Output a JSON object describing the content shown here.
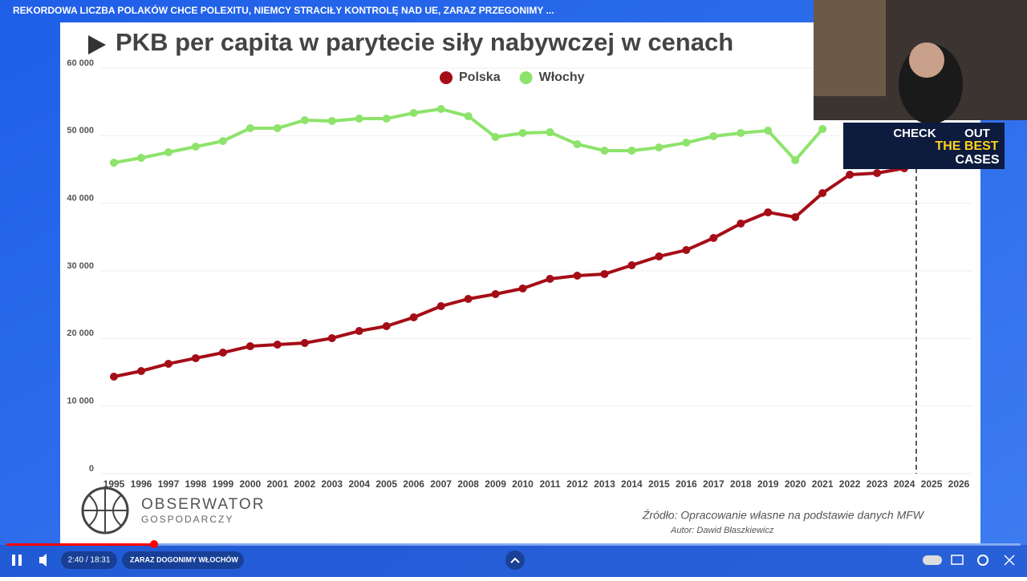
{
  "video": {
    "title": "REKORDOWA LICZBA POLAKÓW CHCE POLEXITU, NIEMCY STRACIŁY KONTROLĘ NAD UE, ZARAZ PRZEGONIMY ...",
    "time": "2:40 / 18:31",
    "chapter": "ZARAZ DOGONIMY WŁOCHÓW",
    "ad": [
      "CHECK",
      "OUT",
      "THE BEST",
      "CASES"
    ]
  },
  "logo": {
    "name": "OBSERWATOR",
    "sub": "GOSPODARCZY"
  },
  "source": "Źródło: Opracowanie własne na podstawie danych MFW",
  "author": "Autor: Dawid Błaszkiewicz",
  "chart_data": {
    "type": "line",
    "title": "PKB per capita w parytecie siły nabywczej w cenach",
    "categories": [
      "1995",
      "1996",
      "1997",
      "1998",
      "1999",
      "2000",
      "2001",
      "2002",
      "2003",
      "2004",
      "2005",
      "2006",
      "2007",
      "2008",
      "2009",
      "2010",
      "2011",
      "2012",
      "2013",
      "2014",
      "2015",
      "2016",
      "2017",
      "2018",
      "2019",
      "2020",
      "2021",
      "2022",
      "2023",
      "2024",
      "2025",
      "2026"
    ],
    "series": [
      {
        "name": "Polska",
        "color": "#a50d16",
        "values": [
          14350,
          15180,
          16250,
          17080,
          17900,
          18850,
          19090,
          19330,
          20040,
          21100,
          21820,
          23120,
          24780,
          25850,
          26560,
          27390,
          28820,
          29290,
          29530,
          30830,
          32140,
          33080,
          34860,
          37000,
          38660,
          37950,
          41500,
          44230,
          44470,
          45180,
          null,
          null
        ]
      },
      {
        "name": "Włochy",
        "color": "#8de36b",
        "values": [
          46010,
          46720,
          47550,
          48380,
          49210,
          51110,
          51110,
          52290,
          52180,
          52530,
          52530,
          53360,
          53950,
          52890,
          49800,
          50400,
          50510,
          48740,
          47790,
          47790,
          48260,
          48970,
          49920,
          50400,
          50750,
          46370,
          50990,
          null,
          null,
          null,
          null,
          null
        ]
      }
    ],
    "ylim": [
      0,
      60000
    ],
    "yticks": [
      0,
      {
        "value": 10000,
        "label": "10 000"
      },
      {
        "value": 20000,
        "label": "20 000"
      },
      {
        "value": 30000,
        "label": "30 000"
      },
      {
        "value": 40000,
        "label": "40 000"
      },
      {
        "value": 50000,
        "label": "50 000"
      },
      {
        "value": 60000,
        "label": "60 000"
      }
    ],
    "grid": true,
    "legend": "top"
  }
}
